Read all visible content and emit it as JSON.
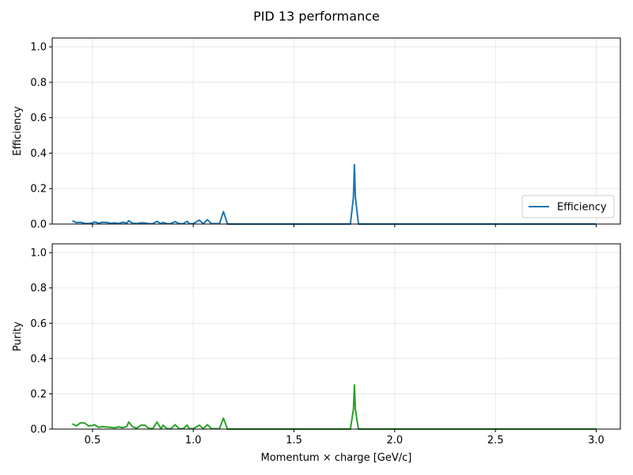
{
  "figure": {
    "suptitle": "PID 13 performance"
  },
  "chart_data": [
    {
      "type": "line",
      "ylabel": "Efficiency",
      "xlabel": "",
      "xlim": [
        0.3,
        3.12
      ],
      "ylim": [
        0.0,
        1.05
      ],
      "xticks": [
        0.5,
        1.0,
        1.5,
        2.0,
        2.5,
        3.0
      ],
      "xtick_labels": [],
      "yticks": [
        0.0,
        0.2,
        0.4,
        0.6,
        0.8,
        1.0
      ],
      "ytick_labels": [
        "0.0",
        "0.2",
        "0.4",
        "0.6",
        "0.8",
        "1.0"
      ],
      "grid": true,
      "legend": {
        "position": "lower-right",
        "entries": [
          "Efficiency"
        ]
      },
      "color": "#1f77b4",
      "series": [
        {
          "name": "Efficiency",
          "x": [
            0.4,
            0.42,
            0.44,
            0.46,
            0.48,
            0.5,
            0.51,
            0.53,
            0.55,
            0.57,
            0.59,
            0.61,
            0.63,
            0.65,
            0.67,
            0.68,
            0.7,
            0.72,
            0.74,
            0.76,
            0.78,
            0.8,
            0.82,
            0.84,
            0.85,
            0.87,
            0.89,
            0.91,
            0.93,
            0.95,
            0.97,
            0.98,
            1.0,
            1.03,
            1.05,
            1.07,
            1.09,
            1.11,
            1.13,
            1.15,
            1.17,
            1.19,
            1.5,
            1.78,
            1.795,
            1.8,
            1.805,
            1.82,
            2.0,
            2.5,
            3.0
          ],
          "y": [
            0.018,
            0.008,
            0.01,
            0.004,
            0.003,
            0.006,
            0.012,
            0.005,
            0.01,
            0.009,
            0.004,
            0.007,
            0.003,
            0.01,
            0.005,
            0.018,
            0.004,
            0.003,
            0.007,
            0.006,
            0.002,
            0.003,
            0.015,
            0.002,
            0.009,
            0.002,
            0.003,
            0.014,
            0.002,
            0.002,
            0.016,
            0.002,
            0.002,
            0.022,
            0.002,
            0.025,
            0.002,
            0.002,
            0.002,
            0.07,
            0.0,
            0.0,
            0.0,
            0.0,
            0.15,
            0.335,
            0.15,
            0.0,
            0.0,
            0.0,
            0.0
          ]
        }
      ]
    },
    {
      "type": "line",
      "ylabel": "Purity",
      "xlabel": "Momentum × charge [GeV/c]",
      "xlim": [
        0.3,
        3.12
      ],
      "ylim": [
        0.0,
        1.05
      ],
      "xticks": [
        0.5,
        1.0,
        1.5,
        2.0,
        2.5,
        3.0
      ],
      "xtick_labels": [
        "0.5",
        "1.0",
        "1.5",
        "2.0",
        "2.5",
        "3.0"
      ],
      "yticks": [
        0.0,
        0.2,
        0.4,
        0.6,
        0.8,
        1.0
      ],
      "ytick_labels": [
        "0.0",
        "0.2",
        "0.4",
        "0.6",
        "0.8",
        "1.0"
      ],
      "grid": true,
      "color": "#2ca02c",
      "series": [
        {
          "x": [
            0.4,
            0.42,
            0.44,
            0.46,
            0.48,
            0.5,
            0.51,
            0.53,
            0.55,
            0.57,
            0.59,
            0.61,
            0.63,
            0.65,
            0.67,
            0.68,
            0.7,
            0.72,
            0.74,
            0.76,
            0.78,
            0.8,
            0.82,
            0.84,
            0.85,
            0.87,
            0.89,
            0.91,
            0.93,
            0.95,
            0.97,
            0.98,
            1.0,
            1.03,
            1.05,
            1.07,
            1.09,
            1.11,
            1.13,
            1.15,
            1.17,
            1.19,
            1.5,
            1.78,
            1.795,
            1.8,
            1.805,
            1.82,
            2.0,
            2.5,
            3.0
          ],
          "y": [
            0.03,
            0.018,
            0.035,
            0.035,
            0.018,
            0.02,
            0.025,
            0.01,
            0.014,
            0.012,
            0.01,
            0.007,
            0.013,
            0.008,
            0.015,
            0.04,
            0.012,
            0.005,
            0.022,
            0.022,
            0.004,
            0.003,
            0.04,
            0.002,
            0.022,
            0.002,
            0.003,
            0.025,
            0.002,
            0.002,
            0.022,
            0.002,
            0.002,
            0.022,
            0.002,
            0.025,
            0.002,
            0.002,
            0.002,
            0.062,
            0.0,
            0.0,
            0.0,
            0.0,
            0.11,
            0.25,
            0.11,
            0.0,
            0.0,
            0.0,
            0.0
          ]
        }
      ]
    }
  ]
}
